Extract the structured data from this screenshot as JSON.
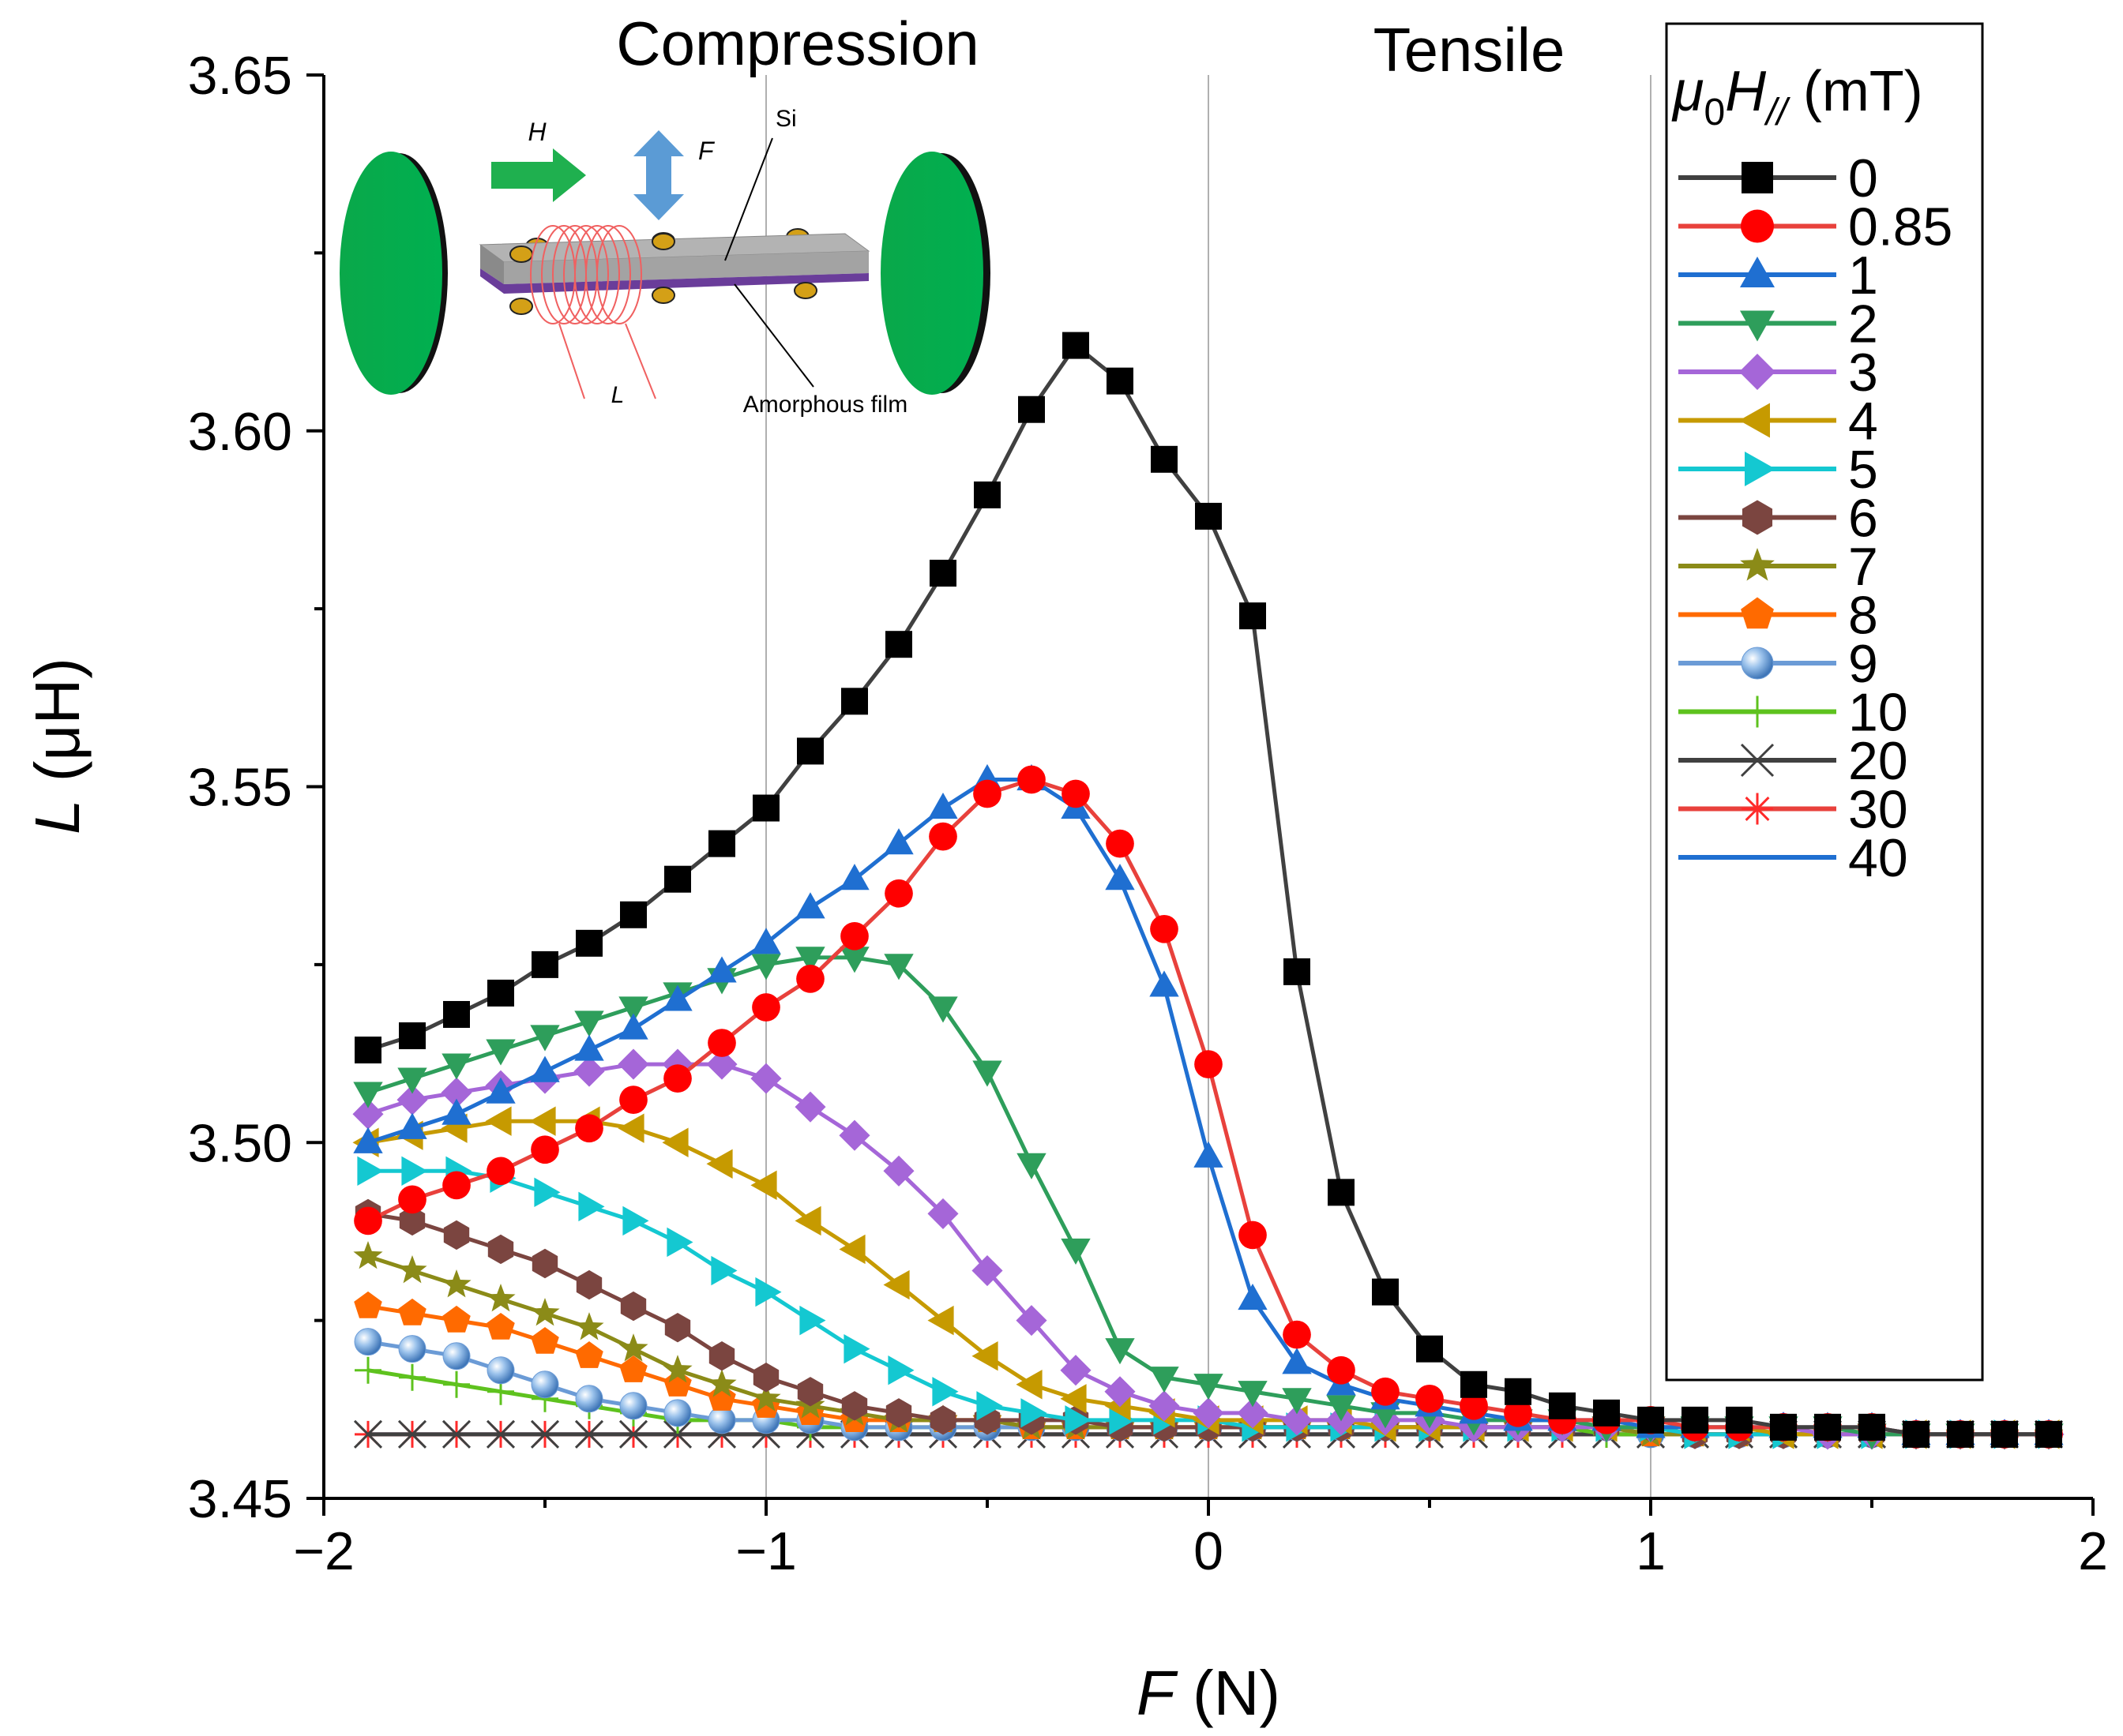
{
  "chart_data": {
    "type": "line",
    "xlabel": "F",
    "xlabel_unit": "(N)",
    "ylabel": "L",
    "ylabel_unit": "(μH)",
    "xlim": [
      -2,
      2
    ],
    "ylim": [
      3.45,
      3.65
    ],
    "x_ticks": [
      -2,
      -1,
      0,
      1,
      2
    ],
    "x_tick_labels": [
      "−2",
      "−1",
      "0",
      "1",
      "2"
    ],
    "y_ticks": [
      3.45,
      3.5,
      3.55,
      3.6,
      3.65
    ],
    "y_tick_labels": [
      "3.45",
      "3.50",
      "3.55",
      "3.60",
      "3.65"
    ],
    "vertical_gridlines_at": [
      -1,
      0,
      1
    ],
    "region_labels": {
      "left": "Compression",
      "right": "Tensile"
    },
    "legend": {
      "title_mu": "μ",
      "title_sub0": "0",
      "title_H": "H",
      "title_sub": "//",
      "title_unit": "(mT)",
      "placement": "right"
    },
    "inset": {
      "h_label": "H",
      "f_label": "F",
      "si_label": "Si",
      "l_label": "L",
      "film_label": "Amorphous film"
    },
    "x": [
      -1.9,
      -1.8,
      -1.7,
      -1.6,
      -1.5,
      -1.4,
      -1.3,
      -1.2,
      -1.1,
      -1.0,
      -0.9,
      -0.8,
      -0.7,
      -0.6,
      -0.5,
      -0.4,
      -0.3,
      -0.2,
      -0.1,
      0.0,
      0.1,
      0.2,
      0.3,
      0.4,
      0.5,
      0.6,
      0.7,
      0.8,
      0.9,
      1.0,
      1.1,
      1.2,
      1.3,
      1.4,
      1.5,
      1.6,
      1.7,
      1.8,
      1.9
    ],
    "series": [
      {
        "name": "0",
        "color": "#404040",
        "marker": "square",
        "markerColor": "#000000",
        "values": [
          3.513,
          3.515,
          3.518,
          3.521,
          3.525,
          3.528,
          3.532,
          3.537,
          3.542,
          3.547,
          3.555,
          3.562,
          3.57,
          3.58,
          3.591,
          3.603,
          3.612,
          3.607,
          3.596,
          3.588,
          3.574,
          3.524,
          3.493,
          3.479,
          3.471,
          3.466,
          3.465,
          3.463,
          3.462,
          3.461,
          3.461,
          3.461,
          3.46,
          3.46,
          3.46,
          3.459,
          3.459,
          3.459,
          3.459
        ]
      },
      {
        "name": "0.85",
        "color": "#e8413c",
        "marker": "circle",
        "markerColor": "#ff0000",
        "values": [
          3.489,
          3.492,
          3.494,
          3.496,
          3.499,
          3.502,
          3.506,
          3.509,
          3.514,
          3.519,
          3.523,
          3.529,
          3.535,
          3.543,
          3.549,
          3.551,
          3.549,
          3.542,
          3.53,
          3.511,
          3.487,
          3.473,
          3.468,
          3.465,
          3.464,
          3.463,
          3.462,
          3.461,
          3.461,
          3.461,
          3.46,
          3.46,
          3.46,
          3.46,
          3.46,
          3.459,
          3.459,
          3.459,
          3.459
        ]
      },
      {
        "name": "1",
        "color": "#1f6fd1",
        "marker": "triangle-up",
        "markerColor": "#1f6fd1",
        "values": [
          3.5,
          3.502,
          3.504,
          3.507,
          3.51,
          3.513,
          3.516,
          3.52,
          3.524,
          3.528,
          3.533,
          3.537,
          3.542,
          3.547,
          3.551,
          3.551,
          3.547,
          3.537,
          3.522,
          3.498,
          3.478,
          3.469,
          3.466,
          3.464,
          3.463,
          3.462,
          3.461,
          3.461,
          3.461,
          3.46,
          3.46,
          3.46,
          3.46,
          3.46,
          3.46,
          3.459,
          3.459,
          3.459,
          3.459
        ]
      },
      {
        "name": "2",
        "color": "#2e9e5b",
        "marker": "triangle-down",
        "markerColor": "#2e9e5b",
        "values": [
          3.507,
          3.509,
          3.511,
          3.513,
          3.515,
          3.517,
          3.519,
          3.521,
          3.523,
          3.525,
          3.526,
          3.526,
          3.525,
          3.519,
          3.51,
          3.497,
          3.485,
          3.471,
          3.467,
          3.466,
          3.465,
          3.464,
          3.463,
          3.462,
          3.462,
          3.461,
          3.461,
          3.461,
          3.46,
          3.46,
          3.46,
          3.46,
          3.46,
          3.46,
          3.459,
          3.459,
          3.459,
          3.459,
          3.459
        ]
      },
      {
        "name": "3",
        "color": "#a566d8",
        "marker": "diamond",
        "markerColor": "#a566d8",
        "values": [
          3.504,
          3.506,
          3.507,
          3.508,
          3.509,
          3.51,
          3.511,
          3.511,
          3.511,
          3.509,
          3.505,
          3.501,
          3.496,
          3.49,
          3.482,
          3.475,
          3.468,
          3.465,
          3.463,
          3.462,
          3.462,
          3.461,
          3.461,
          3.461,
          3.461,
          3.46,
          3.46,
          3.46,
          3.46,
          3.46,
          3.46,
          3.46,
          3.46,
          3.459,
          3.459,
          3.459,
          3.459,
          3.459,
          3.459
        ]
      },
      {
        "name": "4",
        "color": "#c69a00",
        "marker": "triangle-left",
        "markerColor": "#c69a00",
        "values": [
          3.5,
          3.501,
          3.502,
          3.503,
          3.503,
          3.503,
          3.502,
          3.5,
          3.497,
          3.494,
          3.489,
          3.485,
          3.48,
          3.475,
          3.47,
          3.466,
          3.464,
          3.463,
          3.462,
          3.461,
          3.461,
          3.461,
          3.461,
          3.46,
          3.46,
          3.46,
          3.46,
          3.46,
          3.46,
          3.46,
          3.46,
          3.46,
          3.459,
          3.459,
          3.459,
          3.459,
          3.459,
          3.459,
          3.459
        ]
      },
      {
        "name": "5",
        "color": "#14c8d1",
        "marker": "triangle-right",
        "markerColor": "#14c8d1",
        "values": [
          3.496,
          3.496,
          3.496,
          3.495,
          3.493,
          3.491,
          3.489,
          3.486,
          3.482,
          3.479,
          3.475,
          3.471,
          3.468,
          3.465,
          3.463,
          3.462,
          3.461,
          3.461,
          3.461,
          3.461,
          3.46,
          3.46,
          3.46,
          3.46,
          3.46,
          3.46,
          3.46,
          3.46,
          3.46,
          3.46,
          3.459,
          3.459,
          3.459,
          3.459,
          3.459,
          3.459,
          3.459,
          3.459,
          3.459
        ]
      },
      {
        "name": "6",
        "color": "#7b4540",
        "marker": "hexagon",
        "markerColor": "#7b4540",
        "values": [
          3.49,
          3.489,
          3.487,
          3.485,
          3.483,
          3.48,
          3.477,
          3.474,
          3.47,
          3.467,
          3.465,
          3.463,
          3.462,
          3.461,
          3.461,
          3.461,
          3.461,
          3.46,
          3.46,
          3.46,
          3.46,
          3.46,
          3.46,
          3.46,
          3.46,
          3.46,
          3.46,
          3.46,
          3.46,
          3.46,
          3.459,
          3.459,
          3.459,
          3.459,
          3.459,
          3.459,
          3.459,
          3.459,
          3.459
        ]
      },
      {
        "name": "7",
        "color": "#8b8b18",
        "marker": "star",
        "markerColor": "#8b8b18",
        "values": [
          3.484,
          3.482,
          3.48,
          3.478,
          3.476,
          3.474,
          3.471,
          3.468,
          3.466,
          3.464,
          3.463,
          3.462,
          3.461,
          3.461,
          3.461,
          3.46,
          3.46,
          3.46,
          3.46,
          3.46,
          3.46,
          3.46,
          3.46,
          3.46,
          3.46,
          3.46,
          3.46,
          3.46,
          3.46,
          3.459,
          3.459,
          3.459,
          3.459,
          3.459,
          3.459,
          3.459,
          3.459,
          3.459,
          3.459
        ]
      },
      {
        "name": "8",
        "color": "#ff6a00",
        "marker": "pentagon",
        "markerColor": "#ff6a00",
        "values": [
          3.477,
          3.476,
          3.475,
          3.474,
          3.472,
          3.47,
          3.468,
          3.466,
          3.464,
          3.463,
          3.462,
          3.461,
          3.461,
          3.461,
          3.461,
          3.46,
          3.46,
          3.46,
          3.46,
          3.46,
          3.46,
          3.46,
          3.46,
          3.46,
          3.46,
          3.46,
          3.46,
          3.46,
          3.46,
          3.459,
          3.459,
          3.459,
          3.459,
          3.459,
          3.459,
          3.459,
          3.459,
          3.459,
          3.459
        ]
      },
      {
        "name": "9",
        "color": "#6b9bd6",
        "marker": "sphere",
        "markerColor": "#6b9bd6",
        "values": [
          3.472,
          3.471,
          3.47,
          3.468,
          3.466,
          3.464,
          3.463,
          3.462,
          3.461,
          3.461,
          3.461,
          3.46,
          3.46,
          3.46,
          3.46,
          3.46,
          3.46,
          3.46,
          3.46,
          3.46,
          3.46,
          3.46,
          3.46,
          3.46,
          3.46,
          3.46,
          3.46,
          3.46,
          3.46,
          3.459,
          3.459,
          3.459,
          3.459,
          3.459,
          3.459,
          3.459,
          3.459,
          3.459,
          3.459
        ]
      },
      {
        "name": "10",
        "color": "#5ec21e",
        "marker": "plus",
        "markerColor": "#5ec21e",
        "values": [
          3.468,
          3.467,
          3.466,
          3.465,
          3.464,
          3.463,
          3.462,
          3.461,
          3.461,
          3.461,
          3.46,
          3.46,
          3.46,
          3.46,
          3.46,
          3.46,
          3.46,
          3.46,
          3.46,
          3.46,
          3.46,
          3.46,
          3.46,
          3.46,
          3.46,
          3.46,
          3.46,
          3.46,
          3.459,
          3.459,
          3.459,
          3.459,
          3.459,
          3.459,
          3.459,
          3.459,
          3.459,
          3.459,
          3.459
        ]
      },
      {
        "name": "20",
        "color": "#404040",
        "marker": "x",
        "markerColor": "#404040",
        "values": [
          3.459,
          3.459,
          3.459,
          3.459,
          3.459,
          3.459,
          3.459,
          3.459,
          3.459,
          3.459,
          3.459,
          3.459,
          3.459,
          3.459,
          3.459,
          3.459,
          3.459,
          3.459,
          3.459,
          3.459,
          3.459,
          3.459,
          3.459,
          3.459,
          3.459,
          3.459,
          3.459,
          3.459,
          3.459,
          3.459,
          3.459,
          3.459,
          3.459,
          3.459,
          3.459,
          3.459,
          3.459,
          3.459,
          3.459
        ]
      },
      {
        "name": "30",
        "color": "#e8413c",
        "marker": "asterisk",
        "markerColor": "#ff2a2a",
        "values": [
          3.459,
          3.459,
          3.459,
          3.459,
          3.459,
          3.459,
          3.459,
          3.459,
          3.459,
          3.459,
          3.459,
          3.459,
          3.459,
          3.459,
          3.459,
          3.459,
          3.459,
          3.459,
          3.459,
          3.459,
          3.459,
          3.459,
          3.459,
          3.459,
          3.459,
          3.459,
          3.459,
          3.459,
          3.459,
          3.459,
          3.459,
          3.459,
          3.459,
          3.459,
          3.459,
          3.459,
          3.459,
          3.459,
          3.459
        ]
      },
      {
        "name": "40",
        "color": "#1f6fd1",
        "marker": "none",
        "markerColor": "#1f6fd1",
        "values": [
          3.459,
          3.459,
          3.459,
          3.459,
          3.459,
          3.459,
          3.459,
          3.459,
          3.459,
          3.459,
          3.459,
          3.459,
          3.459,
          3.459,
          3.459,
          3.459,
          3.459,
          3.459,
          3.459,
          3.459,
          3.459,
          3.459,
          3.459,
          3.459,
          3.459,
          3.459,
          3.459,
          3.459,
          3.459,
          3.459,
          3.459,
          3.459,
          3.459,
          3.459,
          3.459,
          3.459,
          3.459,
          3.459,
          3.459
        ]
      }
    ]
  }
}
